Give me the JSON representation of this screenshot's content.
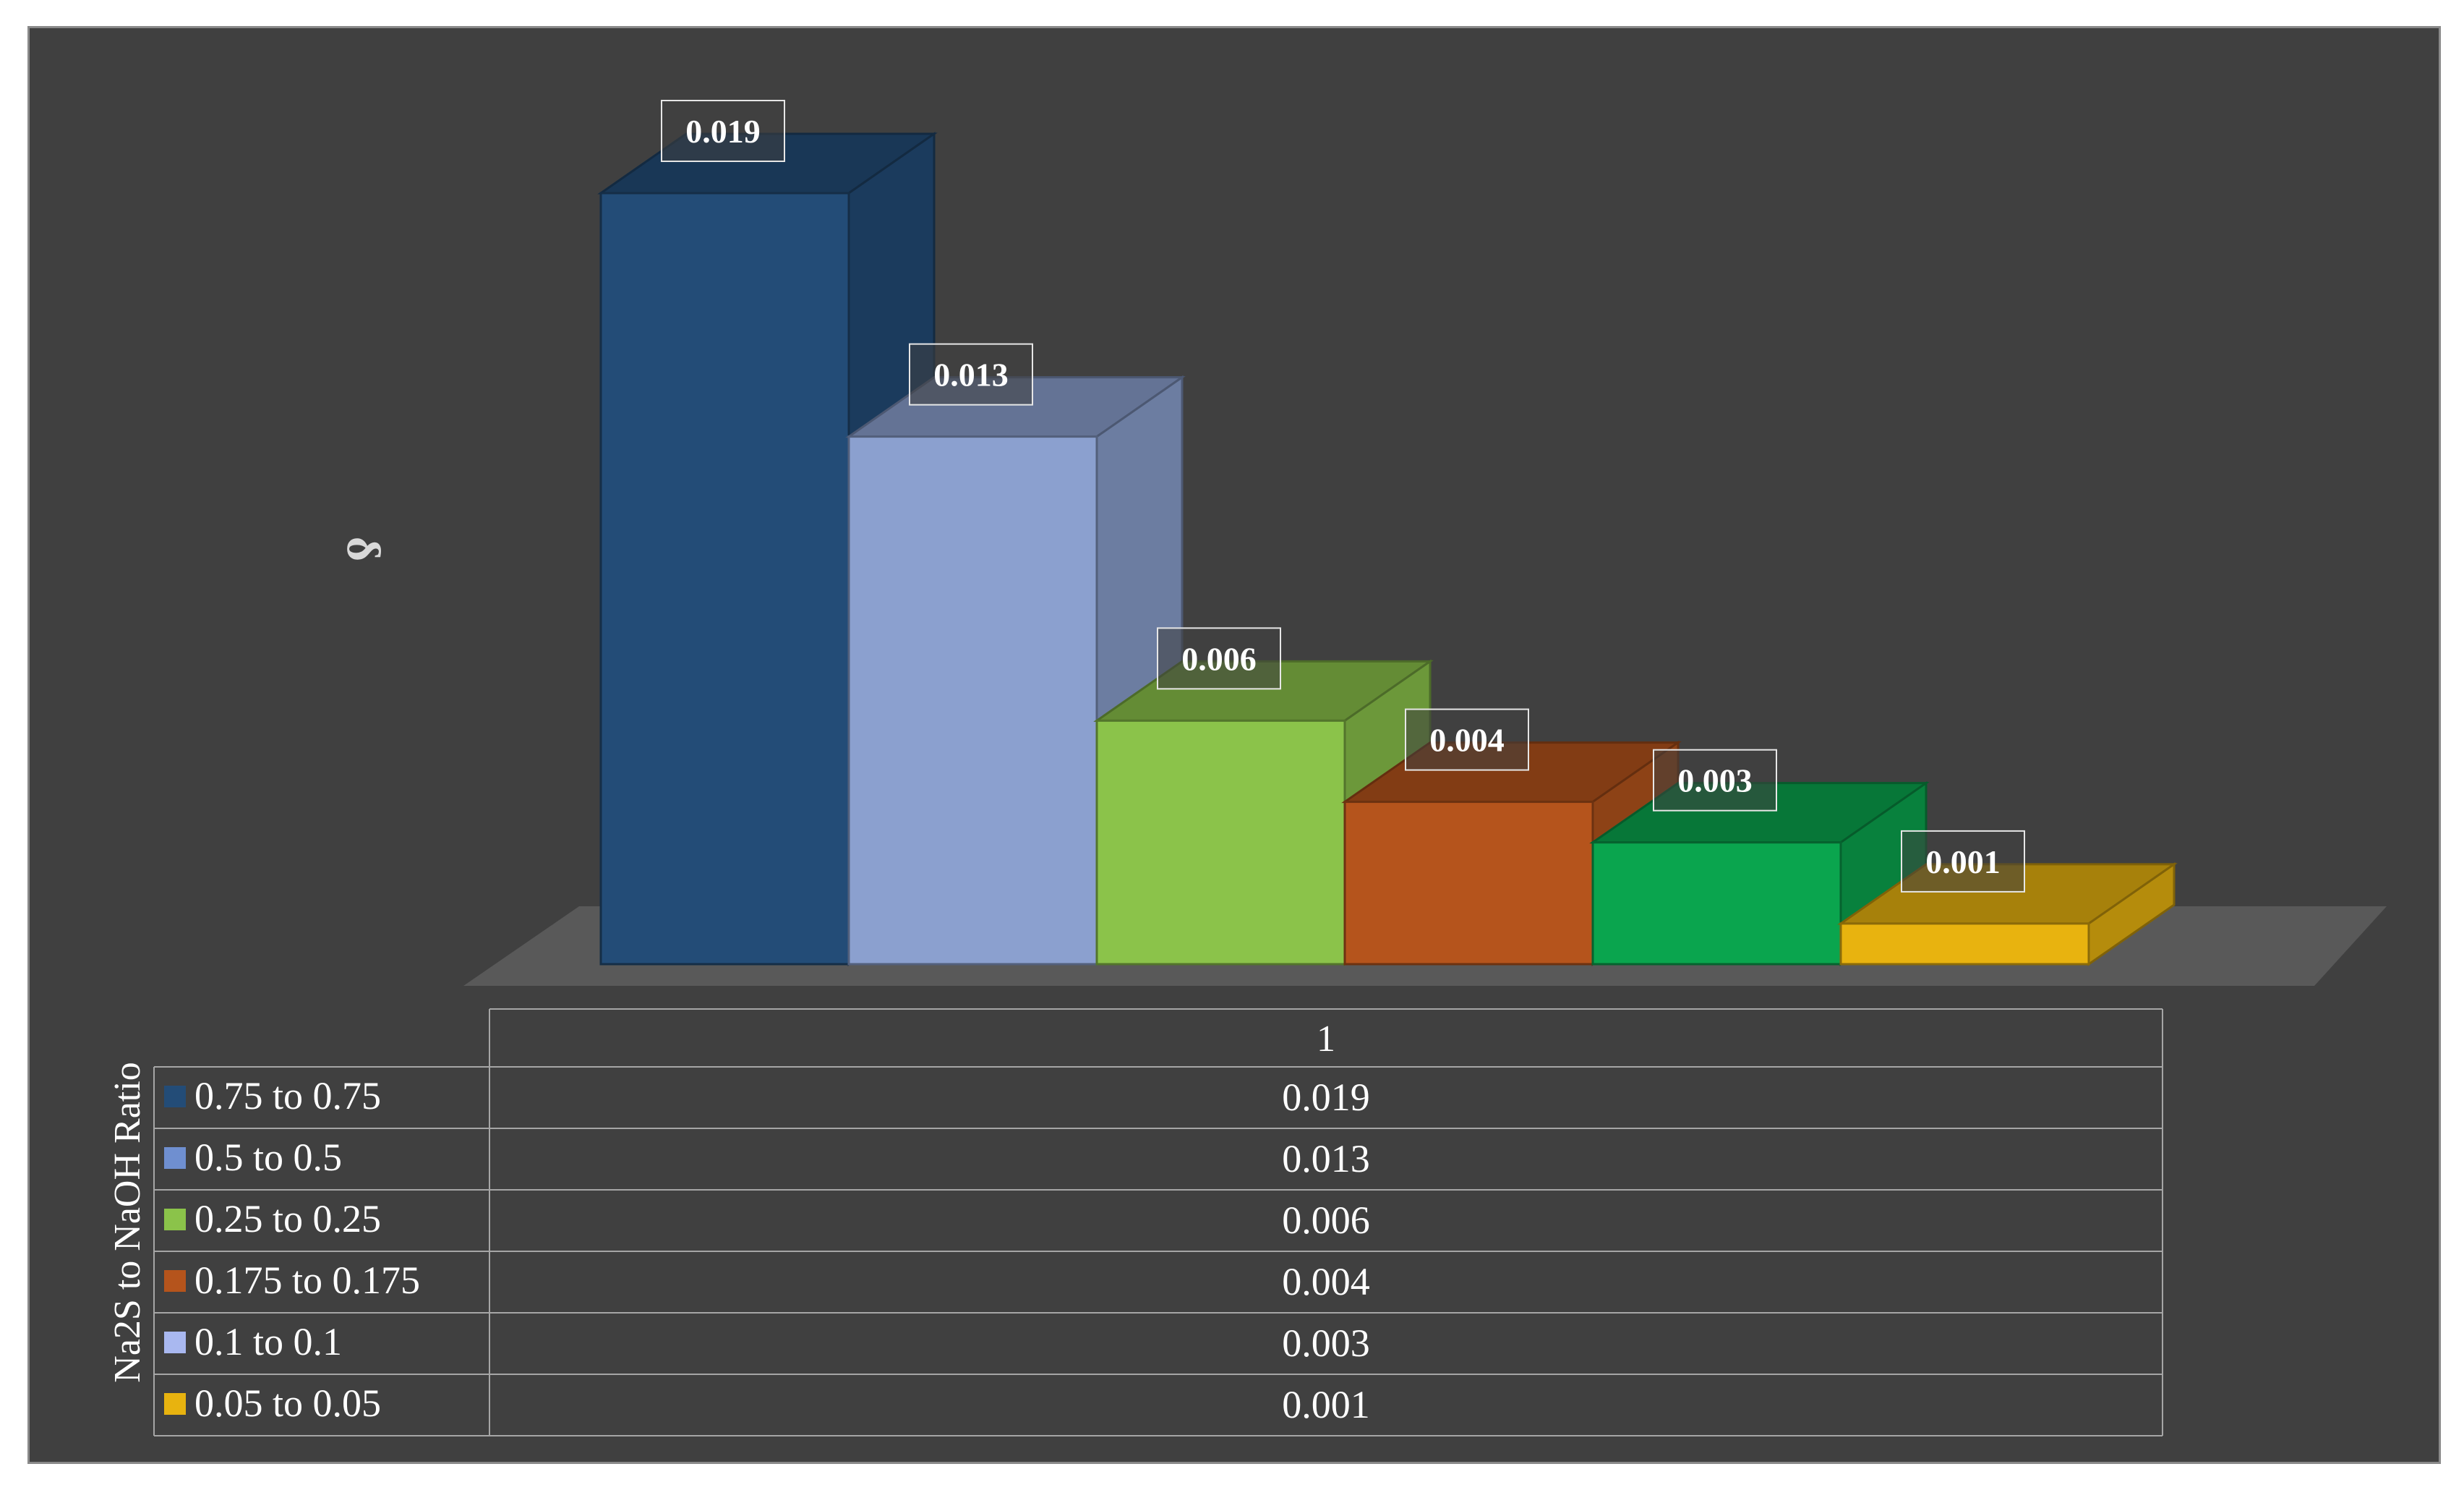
{
  "chart_data": {
    "type": "bar",
    "style": "3d-clustered-column-with-data-table",
    "categories": [
      "1"
    ],
    "ylabel": "δ",
    "table_row_header": "Na2S to NaOH Ratio",
    "series": [
      {
        "name": "0.75 to 0.75",
        "values": [
          0.019
        ],
        "color": "#234c77",
        "label": "0.019",
        "table_value": "0.019"
      },
      {
        "name": "0.5 to 0.5",
        "values": [
          0.013
        ],
        "color": "#8ba0cf",
        "label": "0.013",
        "table_value": "0.013"
      },
      {
        "name": "0.25 to 0.25",
        "values": [
          0.006
        ],
        "color": "#8bc34a",
        "label": "0.006",
        "table_value": "0.006"
      },
      {
        "name": "0.175 to 0.175",
        "values": [
          0.004
        ],
        "color": "#b5541c",
        "label": "0.004",
        "table_value": "0.004"
      },
      {
        "name": "0.1 to 0.1",
        "values": [
          0.003
        ],
        "color": "#0aa54e",
        "label": "0.003",
        "table_value": "0.003"
      },
      {
        "name": "0.05 to 0.05",
        "values": [
          0.001
        ],
        "color": "#e8b30f",
        "label": "0.001",
        "table_value": "0.001"
      }
    ],
    "legend_key_colors": [
      "#234c77",
      "#6f8fd0",
      "#8bc34a",
      "#b5541c",
      "#a9b8f0",
      "#e8b30f"
    ],
    "ylim": [
      0,
      0.019
    ],
    "grid": false,
    "legend": "data-table"
  }
}
